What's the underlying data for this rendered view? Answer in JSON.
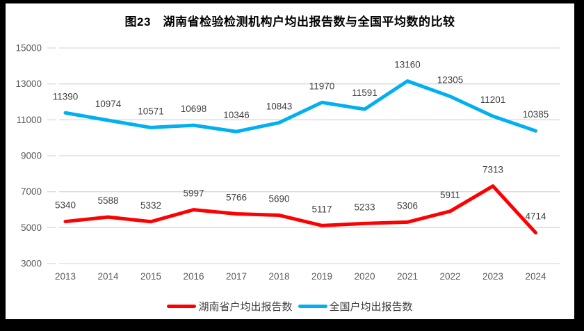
{
  "window": {
    "border_color": "#000000",
    "chart_background": "#FFFFFF"
  },
  "chart_data": {
    "type": "line",
    "title": "图23　湖南省检验检测机构户均出报告数与全国平均数的比较",
    "categories": [
      "2013",
      "2014",
      "2015",
      "2016",
      "2017",
      "2018",
      "2019",
      "2020",
      "2021",
      "2022",
      "2023",
      "2024"
    ],
    "series": [
      {
        "name": "湖南省户均出报告数",
        "color": "#FF0000",
        "values": [
          5340,
          5588,
          5332,
          5997,
          5766,
          5690,
          5117,
          5233,
          5306,
          5911,
          7313,
          4714
        ]
      },
      {
        "name": "全国户均出报告数",
        "color": "#00B0F0",
        "values": [
          11390,
          10974,
          10571,
          10698,
          10346,
          10843,
          11970,
          11591,
          13160,
          12305,
          11201,
          10385
        ]
      }
    ],
    "ylim": [
      3000,
      15000
    ],
    "yticks": [
      15000,
      13000,
      11000,
      9000,
      7000,
      5000,
      3000
    ],
    "grid": "horizontal",
    "legend_position": "bottom",
    "data_labels": true,
    "styles": {
      "gridline_color": "#D9D9D9",
      "axis_label_color": "#595959",
      "data_label_color": "#404040",
      "title_color": "#000000",
      "legend_text_color": "#404040"
    }
  }
}
